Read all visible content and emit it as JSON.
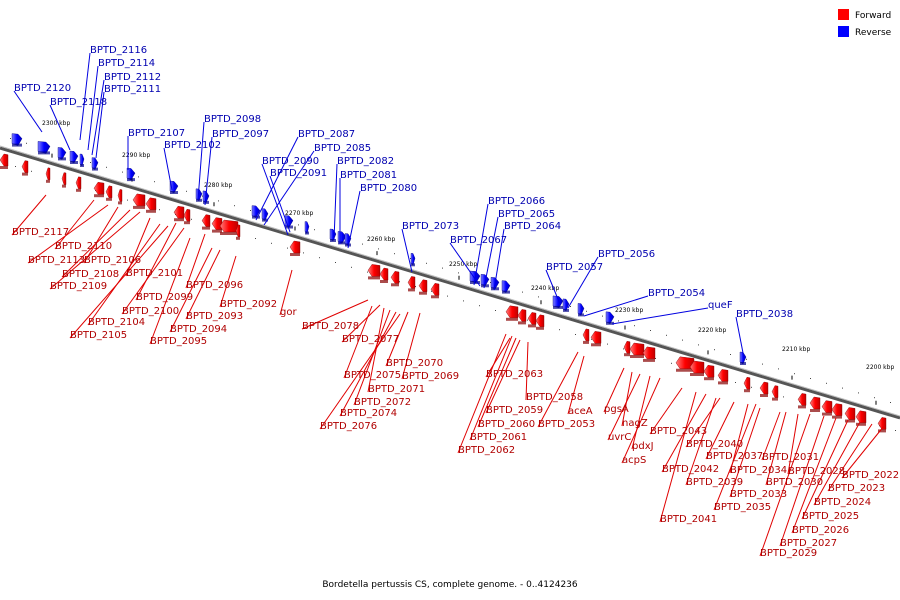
{
  "caption": "Bordetella pertussis CS, complete genome. - 0..4124236",
  "legend": [
    {
      "label": "Forward",
      "color": "#ff0000"
    },
    {
      "label": "Reverse",
      "color": "#0000ff"
    }
  ],
  "ticks": [
    "2300 kbp",
    "2290 kbp",
    "2280 kbp",
    "2270 kbp",
    "2260 kbp",
    "2250 kbp",
    "2240 kbp",
    "2230 kbp",
    "2220 kbp",
    "2210 kbp",
    "2200 kbp"
  ],
  "forward_labels": [
    "BPTD_2117",
    "BPTD_2110",
    "BPTD_2113",
    "BPTD_2106",
    "BPTD_2108",
    "BPTD_2109",
    "BPTD_2101",
    "BPTD_2099",
    "BPTD_2100",
    "BPTD_2096",
    "BPTD_2104",
    "BPTD_2092",
    "BPTD_2093",
    "BPTD_2105",
    "BPTD_2094",
    "BPTD_2095",
    "gor",
    "BPTD_2078",
    "BPTD_2077",
    "BPTD_2070",
    "BPTD_2075",
    "BPTD_2069",
    "BPTD_2071",
    "BPTD_2072",
    "BPTD_2074",
    "BPTD_2076",
    "BPTD_2063",
    "BPTD_2058",
    "BPTD_2059",
    "BPTD_2060",
    "BPTD_2061",
    "BPTD_2062",
    "aceA",
    "BPTD_2053",
    "pgsA",
    "nagZ",
    "uvrC",
    "pdxJ",
    "acpS",
    "BPTD_2043",
    "BPTD_2040",
    "BPTD_2042",
    "BPTD_2037",
    "BPTD_2039",
    "BPTD_2034",
    "BPTD_2041",
    "BPTD_2033",
    "BPTD_2035",
    "BPTD_2031",
    "BPTD_2028",
    "BPTD_2030",
    "BPTD_2022",
    "BPTD_2023",
    "BPTD_2024",
    "BPTD_2025",
    "BPTD_2026",
    "BPTD_2027",
    "BPTD_2029"
  ],
  "reverse_labels": [
    "BPTD_2116",
    "BPTD_2114",
    "BPTD_2112",
    "BPTD_2111",
    "BPTD_2120",
    "BPTD_2118",
    "BPTD_2107",
    "BPTD_2102",
    "BPTD_2098",
    "BPTD_2097",
    "BPTD_2087",
    "BPTD_2085",
    "BPTD_2090",
    "BPTD_2091",
    "BPTD_2082",
    "BPTD_2081",
    "BPTD_2080",
    "BPTD_2073",
    "BPTD_2066",
    "BPTD_2065",
    "BPTD_2064",
    "BPTD_2067",
    "BPTD_2056",
    "BPTD_2057",
    "BPTD_2054",
    "queF",
    "BPTD_2038"
  ]
}
